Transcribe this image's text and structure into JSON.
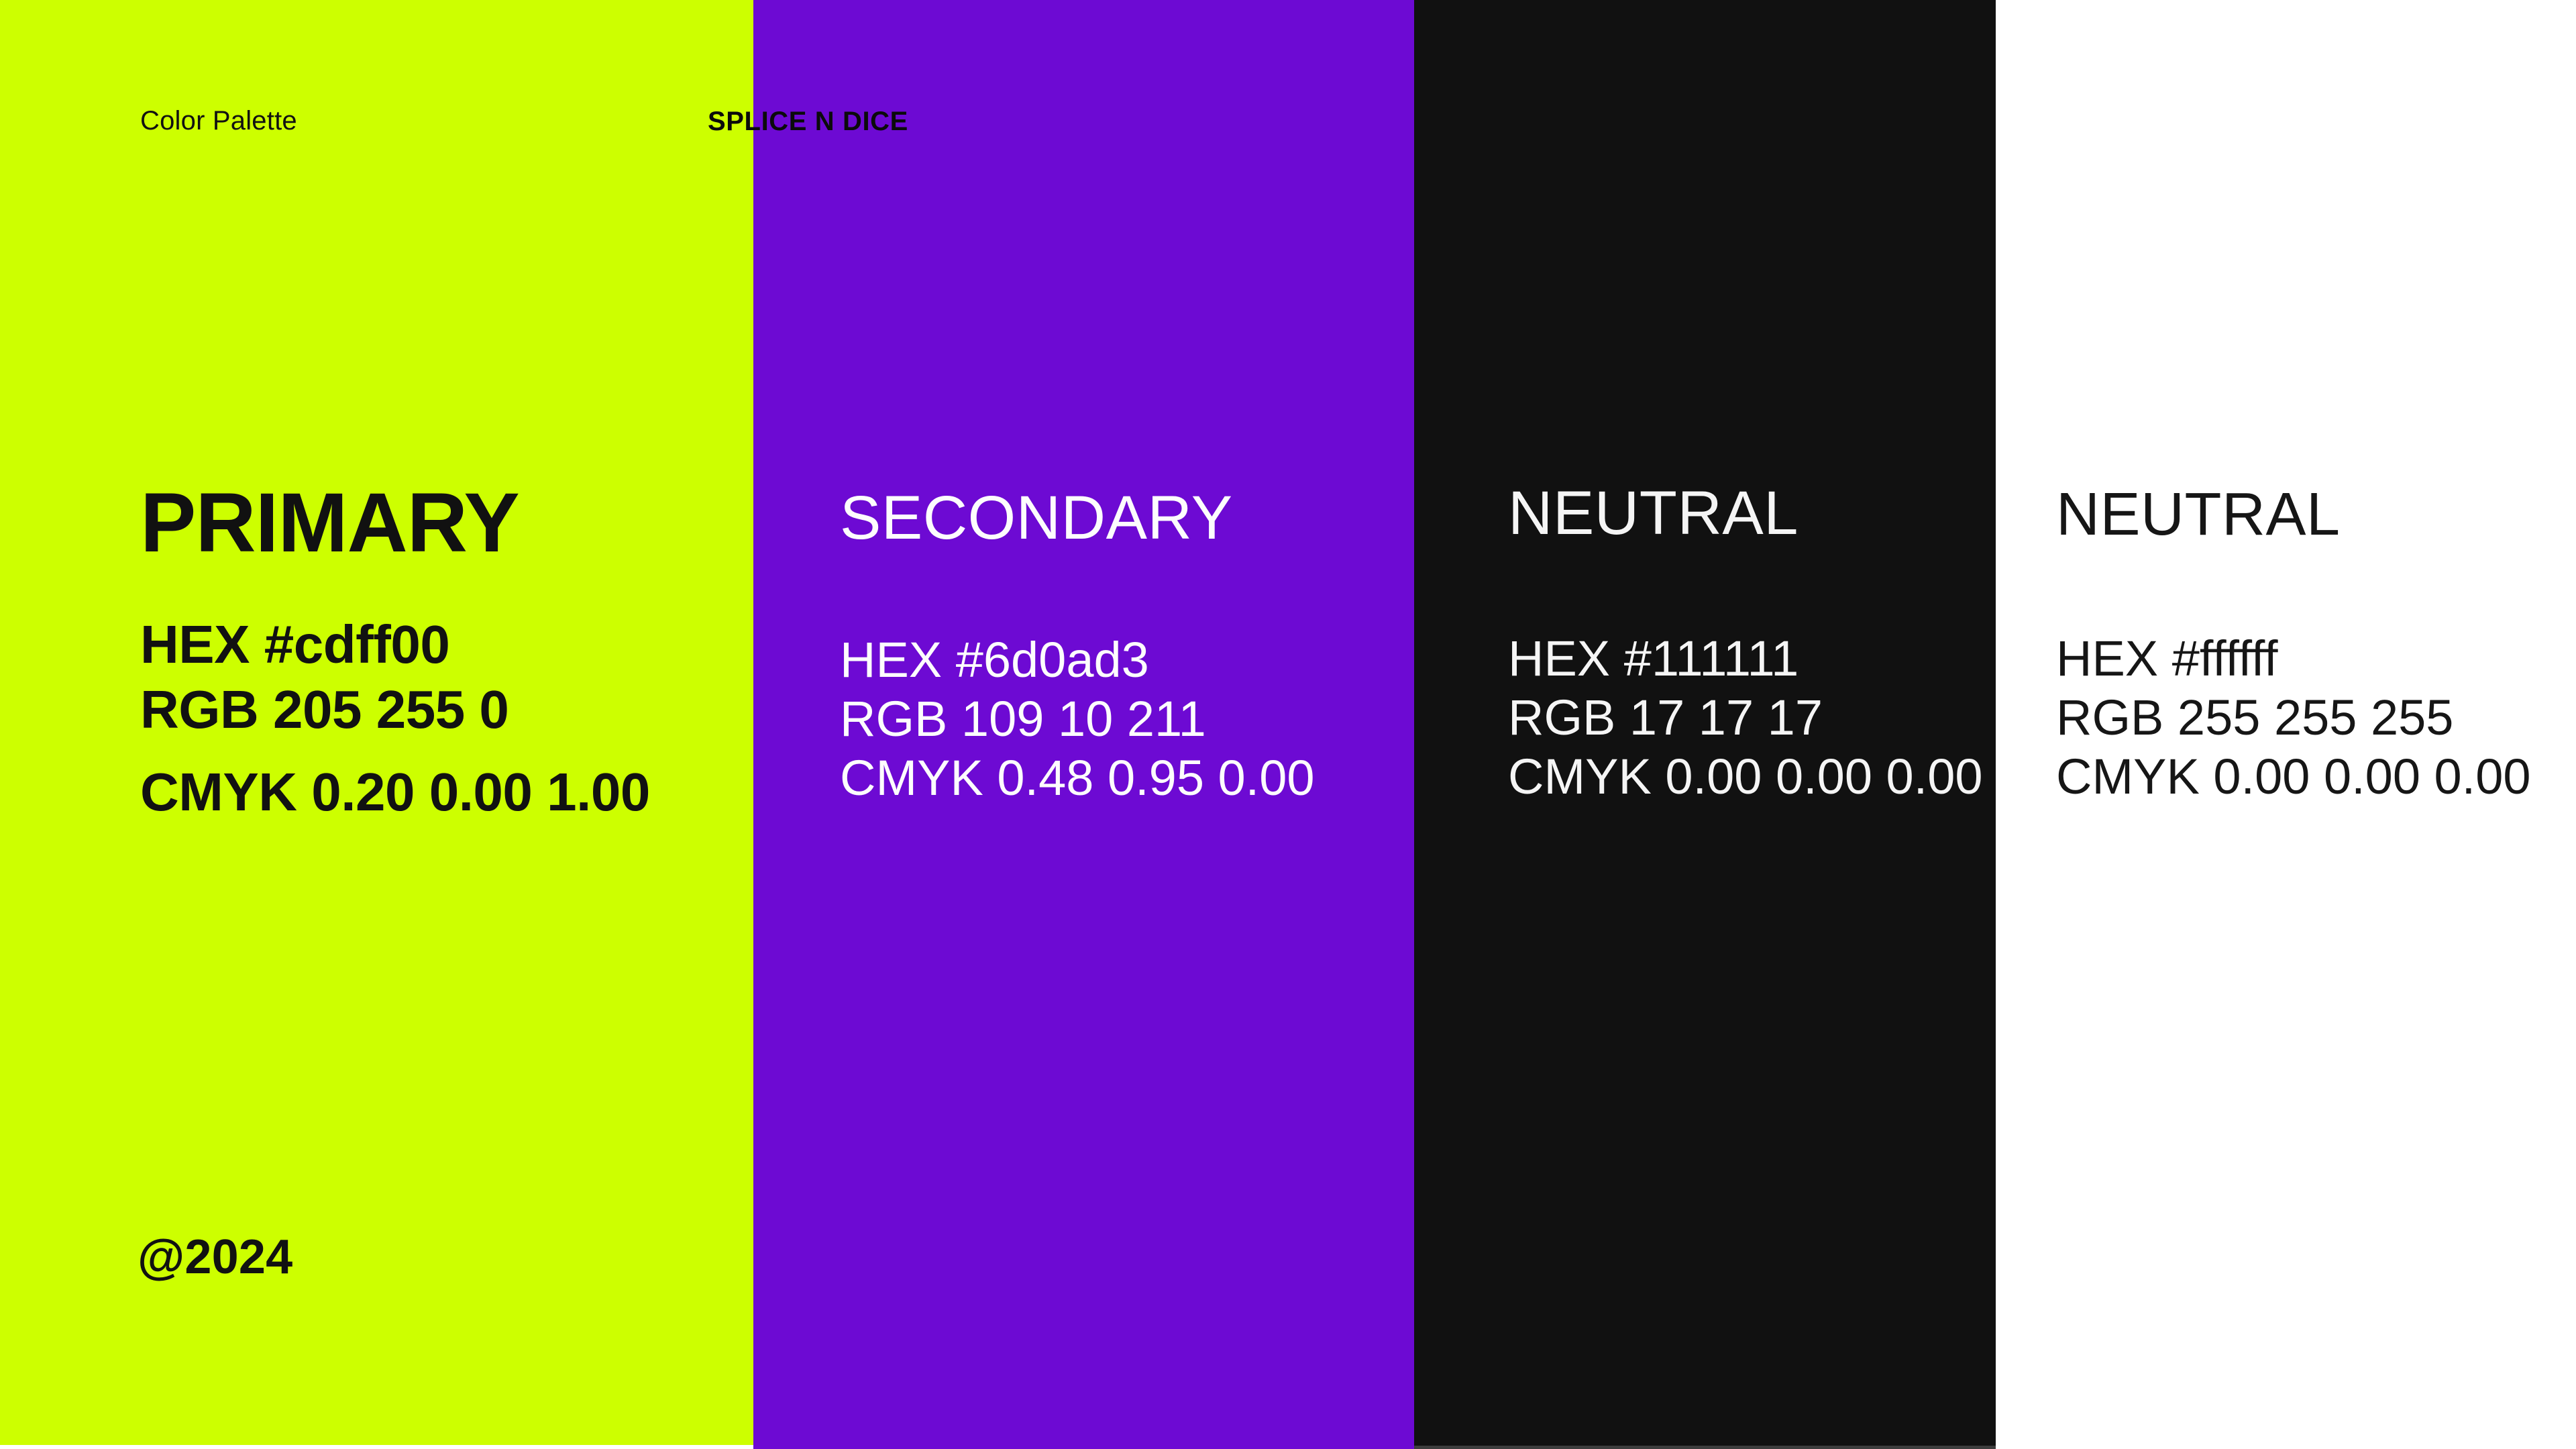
{
  "page": {
    "label": "Color Palette",
    "brand": "SPLICE N DICE",
    "year": "@2024"
  },
  "columns": [
    {
      "role": "PRIMARY",
      "swatch": "#cdff00",
      "text_color": "#111111",
      "hex": "HEX #cdff00",
      "rgb": "RGB 205 255 0",
      "cmyk": "CMYK 0.20 0.00 1.00"
    },
    {
      "role": "SECONDARY",
      "swatch": "#6d0ad3",
      "text_color": "#fdfdfd",
      "hex": "HEX #6d0ad3",
      "rgb": "RGB 109 10 211",
      "cmyk": "CMYK 0.48 0.95 0.00"
    },
    {
      "role": "NEUTRAL",
      "swatch": "#111111",
      "text_color": "#f5f5f5",
      "hex": "HEX #111111",
      "rgb": "RGB 17 17 17",
      "cmyk": "CMYK 0.00 0.00 0.00"
    },
    {
      "role": "NEUTRAL",
      "swatch": "#ffffff",
      "text_color": "#161616",
      "hex": "HEX #ffffff",
      "rgb": "RGB 255 255 255",
      "cmyk": "CMYK 0.00 0.00 0.00"
    }
  ]
}
